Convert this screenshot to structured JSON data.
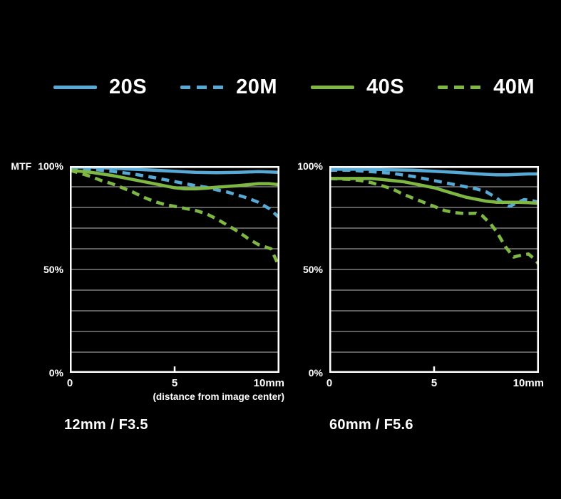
{
  "colors": {
    "background": "#000000",
    "text": "#ffffff",
    "frame": "#ffffff",
    "grid": "#969696",
    "blue": "#57a9d6",
    "green": "#7eb843"
  },
  "legend": {
    "items": [
      {
        "label": "20S",
        "color": "blue",
        "style": "solid"
      },
      {
        "label": "20M",
        "color": "blue",
        "style": "dashed"
      },
      {
        "label": "40S",
        "color": "green",
        "style": "solid"
      },
      {
        "label": "40M",
        "color": "green",
        "style": "dashed"
      }
    ]
  },
  "axis": {
    "mtf_label": "MTF",
    "y_tick_100": "100%",
    "y_tick_50": "50%",
    "y_tick_0": "0%",
    "x_tick_0": "0",
    "x_tick_5": "5",
    "x_tick_10": "10mm",
    "x_caption": "(distance from image center)"
  },
  "chart_data": [
    {
      "type": "line",
      "title": "12mm / F3.5",
      "xlabel": "(distance from image center)",
      "ylabel": "MTF",
      "xlim": [
        0,
        10
      ],
      "ylim": [
        0,
        100
      ],
      "grid_interval_pct": 10,
      "x_ticks": [
        "0",
        "5",
        "10mm"
      ],
      "y_ticks": [
        "100%",
        "50%",
        "0%"
      ],
      "legend_position": "top",
      "series": [
        {
          "name": "20S",
          "color": "blue",
          "style": "solid",
          "x": [
            0,
            1,
            2,
            3,
            4,
            5,
            6,
            7,
            8,
            9,
            10
          ],
          "y": [
            99.5,
            99.5,
            99,
            98.5,
            98,
            97.5,
            97,
            96.8,
            97,
            97.3,
            97
          ]
        },
        {
          "name": "20M",
          "color": "blue",
          "style": "dashed",
          "x": [
            0,
            1,
            2,
            3,
            4,
            5,
            6,
            6.5,
            7,
            7.5,
            8,
            8.5,
            9,
            9.5,
            10
          ],
          "y": [
            99,
            98.5,
            97.5,
            96.2,
            94.5,
            92.5,
            90.5,
            89.8,
            88.5,
            87.5,
            86,
            84.5,
            82.5,
            79.5,
            75
          ]
        },
        {
          "name": "40S",
          "color": "green",
          "style": "solid",
          "x": [
            0,
            1,
            2,
            3,
            4,
            5,
            5.5,
            6,
            6.5,
            7,
            8,
            9,
            9.5,
            10
          ],
          "y": [
            98,
            97,
            95.5,
            93.5,
            91.5,
            89.5,
            89,
            89,
            89.3,
            89.8,
            90.5,
            91.5,
            91.5,
            91
          ]
        },
        {
          "name": "40M",
          "color": "green",
          "style": "dashed",
          "x": [
            0,
            0.5,
            1,
            1.5,
            2,
            2.5,
            3,
            3.5,
            4,
            4.5,
            5,
            5.5,
            6,
            6.5,
            7,
            7.5,
            8,
            8.5,
            9,
            9.3,
            9.6,
            10
          ],
          "y": [
            98,
            96.5,
            95,
            93,
            91.5,
            89.5,
            87.5,
            85,
            83,
            81.5,
            80.5,
            79.5,
            78.5,
            77,
            74.5,
            71.5,
            68.5,
            65,
            62,
            61,
            60,
            51
          ]
        }
      ]
    },
    {
      "type": "line",
      "title": "60mm / F5.6",
      "xlabel": "(distance from image center)",
      "ylabel": "MTF",
      "xlim": [
        0,
        10
      ],
      "ylim": [
        0,
        100
      ],
      "grid_interval_pct": 10,
      "x_ticks": [
        "0",
        "5",
        "10mm"
      ],
      "y_ticks": [
        "100%",
        "50%",
        "0%"
      ],
      "legend_position": "top",
      "series": [
        {
          "name": "20S",
          "color": "blue",
          "style": "solid",
          "x": [
            0,
            1,
            2,
            3,
            4,
            5,
            6,
            7,
            7.5,
            8,
            8.5,
            9,
            9.5,
            10
          ],
          "y": [
            98.5,
            98.5,
            98.5,
            98.2,
            98,
            97.5,
            97,
            96.3,
            96,
            95.8,
            95.8,
            96,
            96.2,
            96.2
          ]
        },
        {
          "name": "20M",
          "color": "blue",
          "style": "dashed",
          "x": [
            0,
            1,
            2,
            3,
            4,
            5,
            5.5,
            6,
            6.5,
            7,
            7.5,
            8,
            8.3,
            8.6,
            9,
            9.3,
            9.6,
            10
          ],
          "y": [
            98,
            98,
            97.3,
            96.5,
            95,
            93,
            92,
            91,
            90,
            89,
            87.5,
            84.5,
            82,
            80.5,
            82.5,
            83.8,
            83.5,
            82.5
          ]
        },
        {
          "name": "40S",
          "color": "green",
          "style": "solid",
          "x": [
            0,
            1,
            2,
            2.5,
            3,
            3.5,
            4,
            4.5,
            5,
            5.5,
            6,
            6.5,
            7,
            7.5,
            8,
            8.5,
            9,
            9.5,
            10
          ],
          "y": [
            94,
            94,
            94,
            93.5,
            93,
            92.5,
            91.5,
            90.5,
            89.5,
            88,
            86.5,
            85,
            84,
            83,
            82.5,
            82.5,
            82.5,
            82.3,
            82
          ]
        },
        {
          "name": "40M",
          "color": "green",
          "style": "dashed",
          "x": [
            0,
            1,
            1.5,
            2,
            2.5,
            3,
            3.5,
            4,
            4.5,
            5,
            5.5,
            6,
            6.5,
            7,
            7.3,
            7.7,
            8,
            8.4,
            8.8,
            9.2,
            9.5,
            9.8,
            10
          ],
          "y": [
            94,
            93.5,
            93,
            92,
            90.5,
            89,
            86.5,
            84.5,
            82.5,
            80.5,
            78.5,
            77.5,
            77,
            77.2,
            76,
            72,
            68,
            61,
            56,
            57,
            57.5,
            55,
            52.5
          ]
        }
      ]
    }
  ]
}
